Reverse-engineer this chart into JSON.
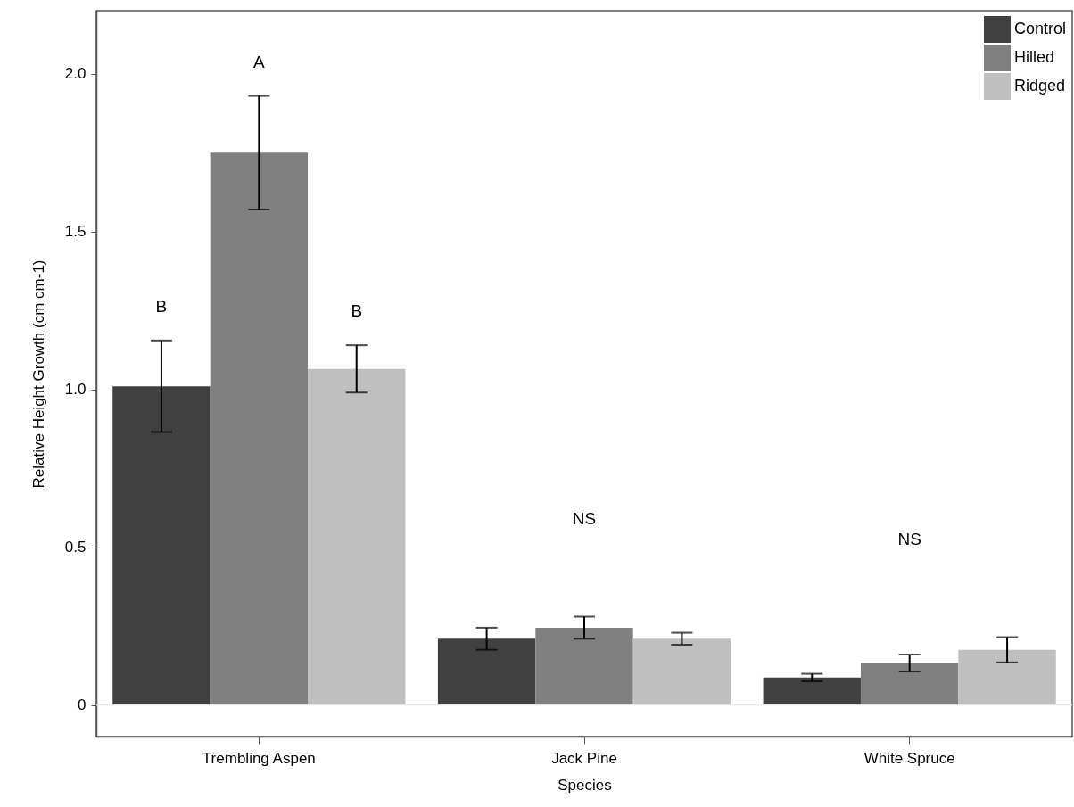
{
  "chart_data": {
    "type": "bar",
    "xlabel": "Species",
    "ylabel": "Relative Height Growth (cm cm-1)",
    "categories": [
      "Trembling Aspen",
      "Jack Pine",
      "White Spruce"
    ],
    "series": [
      {
        "name": "Control",
        "color": "#404040",
        "values": [
          1.01,
          0.21,
          0.087
        ],
        "errors": [
          0.145,
          0.035,
          0.012
        ]
      },
      {
        "name": "Hilled",
        "color": "#808080",
        "values": [
          1.75,
          0.245,
          0.133
        ],
        "errors": [
          0.18,
          0.035,
          0.027
        ]
      },
      {
        "name": "Ridged",
        "color": "#bfbfbf",
        "values": [
          1.065,
          0.21,
          0.175
        ],
        "errors": [
          0.075,
          0.019,
          0.04
        ]
      }
    ],
    "ylim": [
      -0.1,
      2.2
    ],
    "yticks": [
      0,
      0.5,
      {
        "value": 1,
        "label": "1.0"
      },
      1.5,
      {
        "value": 2,
        "label": "2.0"
      }
    ],
    "ref_lines": [
      {
        "axis": "y",
        "value": 0,
        "color": "#e6e6e6"
      }
    ],
    "annotations": [
      "B",
      "A",
      "B",
      "NS",
      "NS"
    ],
    "grid": false,
    "legend": "top right"
  }
}
